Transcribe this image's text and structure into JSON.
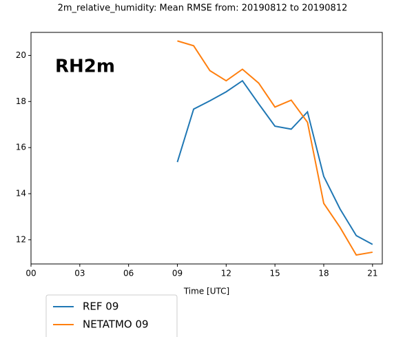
{
  "chart_data": {
    "type": "line",
    "title": "2m_relative_humidity: Mean RMSE from: 20190812 to 20190812",
    "annotation": "RH2m",
    "x_label": "Time [UTC]",
    "x": [
      9,
      10,
      11,
      12,
      13,
      14,
      15,
      16,
      17,
      18,
      19,
      20,
      21
    ],
    "series": [
      {
        "name": "REF 09",
        "color": "#1f77b4",
        "values": [
          15.37,
          17.67,
          18.03,
          18.42,
          18.9,
          17.9,
          16.93,
          16.8,
          17.55,
          14.75,
          13.34,
          12.18,
          11.8
        ]
      },
      {
        "name": "NETATMO 09",
        "color": "#ff7f0e",
        "values": [
          20.63,
          20.42,
          19.34,
          18.9,
          19.4,
          18.8,
          17.76,
          18.06,
          17.1,
          13.58,
          12.54,
          11.34,
          11.46
        ]
      }
    ],
    "xlim": [
      0,
      21.6
    ],
    "xticks": [
      {
        "value": 0,
        "label": "00"
      },
      {
        "value": 3,
        "label": "03"
      },
      {
        "value": 6,
        "label": "06"
      },
      {
        "value": 9,
        "label": "09"
      },
      12,
      15,
      18,
      21
    ],
    "ylim": [
      10.95,
      21.0
    ],
    "yticks": [
      12,
      14,
      16,
      18,
      20
    ],
    "legend": "outside-bottom-left"
  }
}
